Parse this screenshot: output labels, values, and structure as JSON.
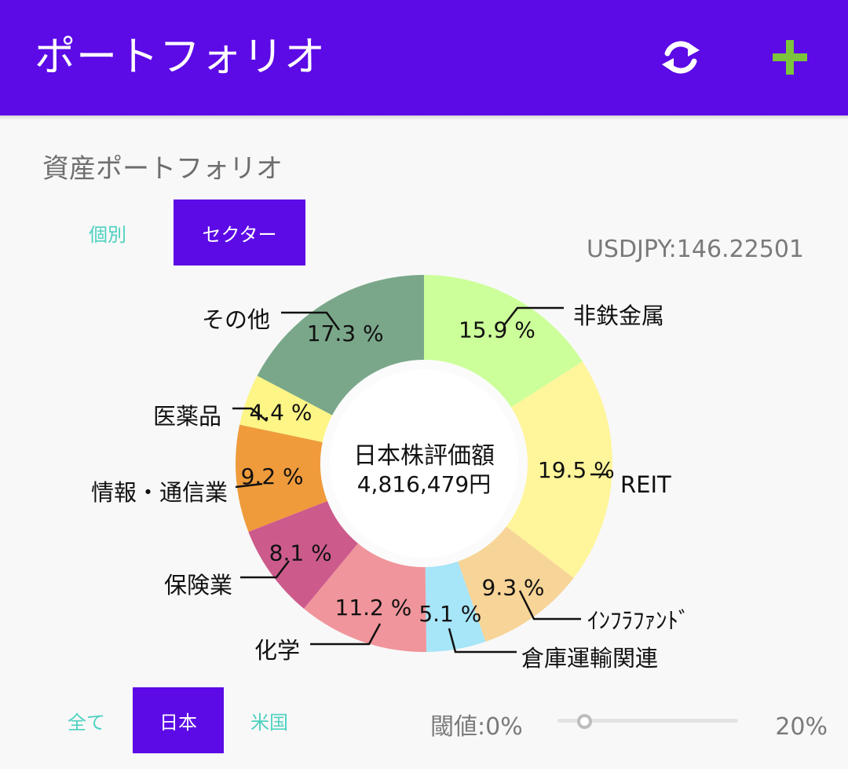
{
  "appbar": {
    "title": "ポートフォリオ",
    "refresh_icon": "refresh-icon",
    "add_icon": "plus-icon",
    "color": "#5c0ae6",
    "add_color": "#7cc43b"
  },
  "section": {
    "title": "資産ポートフォリオ"
  },
  "view_tabs": {
    "individual": "個別",
    "sector": "セクター",
    "selected": "セクター"
  },
  "fx_rate": "USDJPY:146.22501",
  "chart_data": {
    "type": "pie",
    "center_title": "日本株評価額",
    "center_value": "4,816,479円",
    "slices": [
      {
        "label": "非鉄金属",
        "value": 15.9,
        "pct_text": "15.9 %",
        "color": "#ccff99"
      },
      {
        "label": "REIT",
        "value": 19.5,
        "pct_text": "19.5 %",
        "color": "#fff59a"
      },
      {
        "label": "ｲﾝﾌﾗﾌｧﾝﾄﾞ",
        "value": 9.3,
        "pct_text": "9.3 %",
        "color": "#f7d497"
      },
      {
        "label": "倉庫運輸関連",
        "value": 5.1,
        "pct_text": "5.1 %",
        "color": "#a7e5f8"
      },
      {
        "label": "化学",
        "value": 11.2,
        "pct_text": "11.2 %",
        "color": "#f0959b"
      },
      {
        "label": "保険業",
        "value": 8.1,
        "pct_text": "8.1 %",
        "color": "#cc5b8c"
      },
      {
        "label": "情報・通信業",
        "value": 9.2,
        "pct_text": "9.2 %",
        "color": "#ef9b3c"
      },
      {
        "label": "医薬品",
        "value": 4.4,
        "pct_text": "4.4 %",
        "color": "#fdf585"
      },
      {
        "label": "その他",
        "value": 17.3,
        "pct_text": "17.3 %",
        "color": "#7aa78a"
      }
    ]
  },
  "market_tabs": {
    "all": "全て",
    "japan": "日本",
    "us": "米国",
    "selected": "日本"
  },
  "threshold": {
    "label": "閾値:0%",
    "value_percent": 0,
    "max_label": "20%"
  }
}
